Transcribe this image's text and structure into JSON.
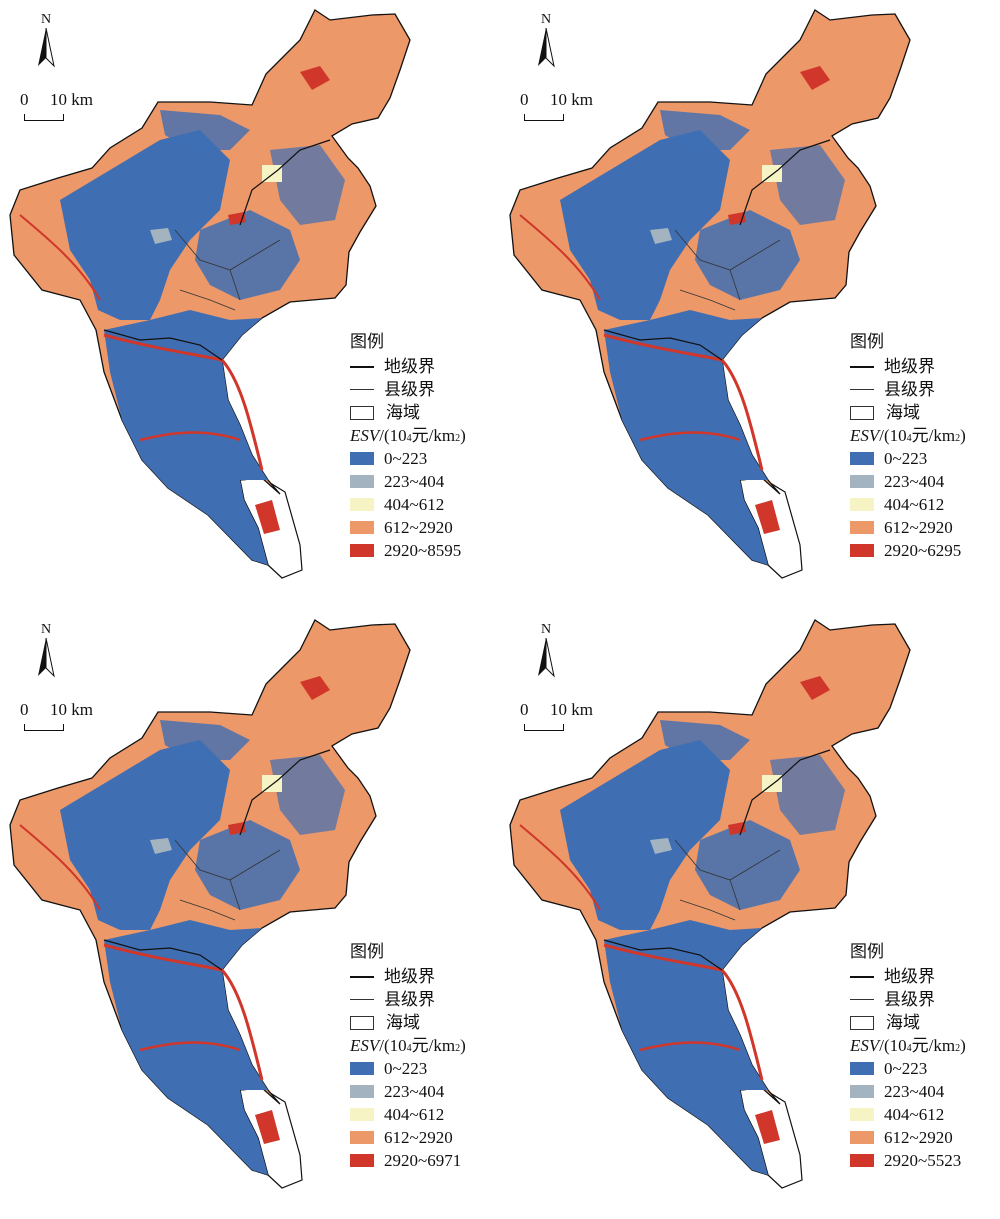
{
  "panels": [
    {
      "north_label": "N",
      "scale": {
        "zero": "0",
        "ten": "10 km"
      },
      "legend": {
        "title": "图例",
        "boundary_city": "地级界",
        "boundary_county": "县级界",
        "sea": "海域",
        "esv_var": "ESV",
        "esv_pre": "/(10",
        "esv_sup4": "4",
        "esv_mid": "元/km",
        "esv_sup2": "2",
        "esv_post": ")",
        "classes": [
          "0~223",
          "223~404",
          "404~612",
          "612~2920",
          "2920~8595"
        ]
      }
    },
    {
      "north_label": "N",
      "scale": {
        "zero": "0",
        "ten": "10 km"
      },
      "legend": {
        "title": "图例",
        "boundary_city": "地级界",
        "boundary_county": "县级界",
        "sea": "海域",
        "esv_var": "ESV",
        "esv_pre": "/(10",
        "esv_sup4": "4",
        "esv_mid": "元/km",
        "esv_sup2": "2",
        "esv_post": ")",
        "classes": [
          "0~223",
          "223~404",
          "404~612",
          "612~2920",
          "2920~6295"
        ]
      }
    },
    {
      "north_label": "N",
      "scale": {
        "zero": "0",
        "ten": "10 km"
      },
      "legend": {
        "title": "图例",
        "boundary_city": "地级界",
        "boundary_county": "县级界",
        "sea": "海域",
        "esv_var": "ESV",
        "esv_pre": "/(10",
        "esv_sup4": "4",
        "esv_mid": "元/km",
        "esv_sup2": "2",
        "esv_post": ")",
        "classes": [
          "0~223",
          "223~404",
          "404~612",
          "612~2920",
          "2920~6971"
        ]
      }
    },
    {
      "north_label": "N",
      "scale": {
        "zero": "0",
        "ten": "10 km"
      },
      "legend": {
        "title": "图例",
        "boundary_city": "地级界",
        "boundary_county": "县级界",
        "sea": "海域",
        "esv_var": "ESV",
        "esv_pre": "/(10",
        "esv_sup4": "4",
        "esv_mid": "元/km",
        "esv_sup2": "2",
        "esv_post": ")",
        "classes": [
          "0~223",
          "223~404",
          "404~612",
          "612~2920",
          "2920~5523"
        ]
      }
    }
  ],
  "class_colors": [
    "#3f6eb3",
    "#a3b3c0",
    "#f6f4c4",
    "#ec9868",
    "#d0362a"
  ]
}
